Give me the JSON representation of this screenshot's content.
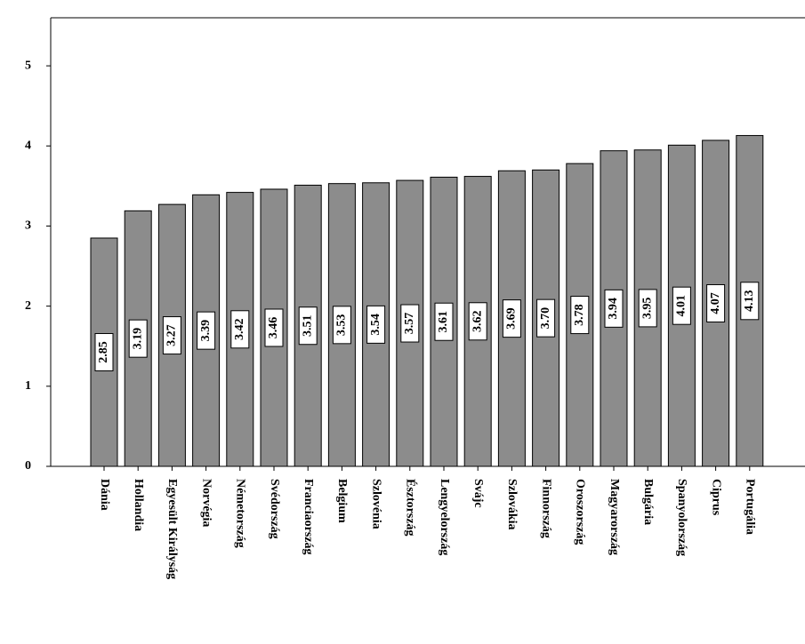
{
  "chart_data": {
    "type": "bar",
    "categories": [
      "Dánia",
      "Hollandia",
      "Egyesült Királyság",
      "Norvégia",
      "Németország",
      "Svédország",
      "Franciaország",
      "Belgium",
      "Szlovénia",
      "Észtország",
      "Lengyelország",
      "Svájc",
      "Szlovákia",
      "Finnország",
      "Oroszország",
      "Magyarország",
      "Bulgária",
      "Spanyolország",
      "Ciprus",
      "Portugália"
    ],
    "values": [
      2.85,
      3.19,
      3.27,
      3.39,
      3.42,
      3.46,
      3.51,
      3.53,
      3.54,
      3.57,
      3.61,
      3.62,
      3.69,
      3.7,
      3.78,
      3.94,
      3.95,
      4.01,
      4.07,
      4.13
    ],
    "value_labels": [
      "2.85",
      "3.19",
      "3.27",
      "3.39",
      "3.42",
      "3.46",
      "3.51",
      "3.53",
      "3.54",
      "3.57",
      "3.61",
      "3.62",
      "3.69",
      "3.70",
      "3.78",
      "3.94",
      "3.95",
      "4.01",
      "4.07",
      "4.13"
    ],
    "color": "#8c8c8c",
    "ylim": [
      0,
      5.6
    ],
    "yticks": [
      0,
      1,
      2,
      3,
      4,
      5
    ]
  }
}
